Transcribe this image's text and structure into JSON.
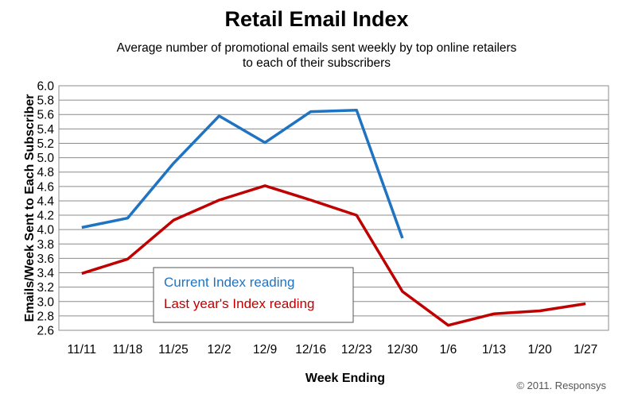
{
  "chart_data": {
    "type": "line",
    "title": "Retail Email Index",
    "subtitle": [
      "Average number of promotional emails sent weekly by top online retailers",
      "to each of their subscribers"
    ],
    "xlabel": "Week Ending",
    "ylabel": "Emails/Week Sent to Each Subscriber",
    "categories": [
      "11/11",
      "11/18",
      "11/25",
      "12/2",
      "12/9",
      "12/16",
      "12/23",
      "12/30",
      "1/6",
      "1/13",
      "1/20",
      "1/27"
    ],
    "ylim": [
      2.6,
      6.0
    ],
    "yticks": [
      2.6,
      2.8,
      3.0,
      3.2,
      3.4,
      3.6,
      3.8,
      4.0,
      4.2,
      4.4,
      4.6,
      4.8,
      5.0,
      5.2,
      5.4,
      5.6,
      5.8,
      6.0
    ],
    "grid": true,
    "legend_position": "bottom-left",
    "series": [
      {
        "name": "Current Index reading",
        "color": "#1f73c3",
        "values": [
          4.03,
          4.16,
          4.92,
          5.58,
          5.21,
          5.64,
          5.66,
          3.88,
          null,
          null,
          null,
          null
        ]
      },
      {
        "name": "Last year's Index reading",
        "color": "#c00000",
        "values": [
          3.39,
          3.59,
          4.13,
          4.41,
          4.61,
          4.41,
          4.2,
          3.14,
          2.67,
          2.83,
          2.87,
          2.97
        ]
      }
    ]
  },
  "credit": "© 2011. Responsys"
}
